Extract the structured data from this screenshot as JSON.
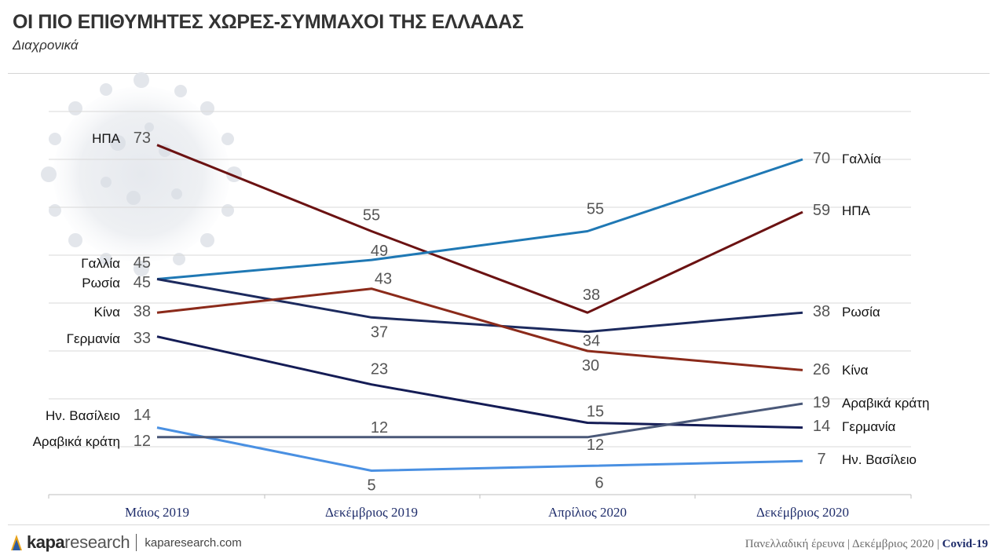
{
  "header": {
    "title": "ΟΙ ΠΙΟ ΕΠΙΘΥΜΗΤΕΣ ΧΩΡΕΣ-ΣΥΜΜΑΧΟΙ ΤΗΣ ΕΛΛΑΔΑΣ",
    "subtitle": "Διαχρονικά"
  },
  "chart_data": {
    "type": "line",
    "title": "ΟΙ ΠΙΟ ΕΠΙΘΥΜΗΤΕΣ ΧΩΡΕΣ-ΣΥΜΜΑΧΟΙ ΤΗΣ ΕΛΛΑΔΑΣ",
    "subtitle": "Διαχρονικά",
    "categories": [
      "Μάιος 2019",
      "Δεκέμβριος 2019",
      "Απρίλιος 2020",
      "Δεκέμβριος 2020"
    ],
    "ylim": [
      0,
      80
    ],
    "grid": true,
    "series": [
      {
        "name": "ΗΠΑ",
        "values": [
          73,
          55,
          38,
          59
        ],
        "color": "#6b1212"
      },
      {
        "name": "Γαλλία",
        "values": [
          45,
          49,
          55,
          70
        ],
        "color": "#1f78b4"
      },
      {
        "name": "Ρωσία",
        "values": [
          45,
          37,
          34,
          38
        ],
        "color": "#1c2a5e"
      },
      {
        "name": "Κίνα",
        "values": [
          38,
          43,
          30,
          26
        ],
        "color": "#8b2a1a"
      },
      {
        "name": "Γερμανία",
        "values": [
          33,
          23,
          15,
          14
        ],
        "color": "#141c55"
      },
      {
        "name": "Ην. Βασίλειο",
        "values": [
          14,
          5,
          6,
          7
        ],
        "color": "#4a90e2"
      },
      {
        "name": "Αραβικά κράτη",
        "values": [
          12,
          12,
          12,
          19
        ],
        "color": "#4a5878"
      }
    ]
  },
  "footer": {
    "brand_bold": "kapa",
    "brand_light": "research",
    "url": "kaparesearch.com",
    "survey": "Πανελλαδική έρευνα | Δεκέμβριος 2020 |",
    "topic": "Covid-19"
  }
}
